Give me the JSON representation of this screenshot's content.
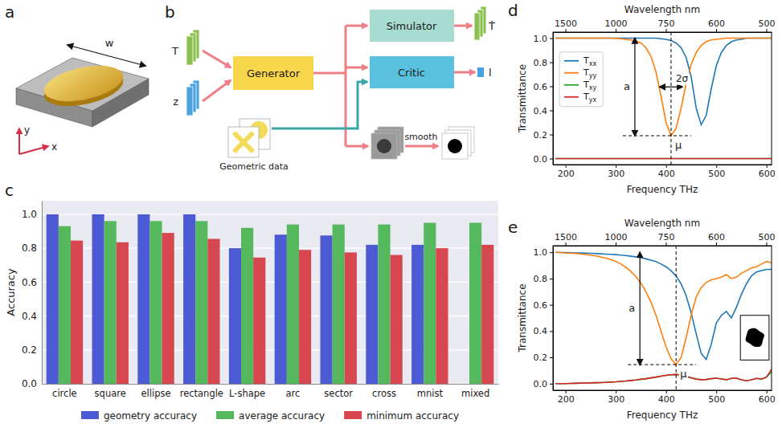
{
  "panel_labels": [
    "a",
    "b",
    "c",
    "d",
    "e"
  ],
  "illustration_a": {
    "axes": [
      "x",
      "y"
    ],
    "width": "w"
  },
  "diagram_b": {
    "inputs": [
      "T",
      "z"
    ],
    "generator": "Generator",
    "simulator": "Simulator",
    "critic": "Critic",
    "outputs": [
      "T̂",
      "l"
    ],
    "geometric_data": "Geometric data",
    "smooth": "smooth"
  },
  "chart_data": [
    {
      "type": "bar",
      "y_label": "Accuracy",
      "categories": [
        "circle",
        "square",
        "ellipse",
        "rectangle",
        "L-shape",
        "arc",
        "sector",
        "cross",
        "mnist",
        "mixed"
      ],
      "ylim": [
        0,
        1.08
      ],
      "yticks": [
        {
          "value": 0,
          "label": "0.0"
        },
        0.2,
        0.4,
        0.6,
        0.8,
        {
          "value": 1,
          "label": "1.0"
        }
      ],
      "grid": true,
      "legend": "bottom",
      "series": [
        {
          "name": "geometry accuracy",
          "color": "#4c5bd4",
          "values": [
            1.0,
            1.0,
            1.0,
            1.0,
            0.8,
            0.88,
            0.875,
            0.82,
            0.82,
            null
          ]
        },
        {
          "name": "average accuracy",
          "color": "#55b85c",
          "values": [
            0.93,
            0.96,
            0.96,
            0.96,
            0.92,
            0.94,
            0.94,
            0.94,
            0.95,
            0.95
          ]
        },
        {
          "name": "minimum accuracy",
          "color": "#d6474f",
          "values": [
            0.845,
            0.835,
            0.89,
            0.855,
            0.745,
            0.79,
            0.775,
            0.76,
            0.8,
            0.82
          ]
        }
      ]
    },
    {
      "type": "line",
      "x_label": "Frequency THz",
      "x2_label": "Wavelength nm",
      "y_label": "Transmittance",
      "x": [
        180,
        190,
        200,
        210,
        220,
        230,
        240,
        250,
        260,
        270,
        280,
        290,
        300,
        310,
        320,
        330,
        340,
        350,
        360,
        370,
        380,
        390,
        400,
        410,
        420,
        430,
        440,
        450,
        460,
        470,
        480,
        490,
        500,
        510,
        520,
        530,
        540,
        550,
        560,
        570,
        580,
        590,
        600,
        610
      ],
      "xlim": [
        175,
        610
      ],
      "xticks": [
        200,
        300,
        400,
        500,
        600
      ],
      "x2ticks": [
        {
          "value": 199.86,
          "label": "1500"
        },
        {
          "value": 299.79,
          "label": "1000"
        },
        {
          "value": 399.72,
          "label": "750"
        },
        {
          "value": 499.65,
          "label": "600"
        },
        {
          "value": 599.58,
          "label": "500"
        }
      ],
      "ylim": [
        -0.05,
        1.05
      ],
      "yticks": [
        {
          "value": 0,
          "label": "0.0"
        },
        0.2,
        0.4,
        0.6,
        0.8,
        {
          "value": 1,
          "label": "1.0"
        }
      ],
      "grid": false,
      "legend": "upper left",
      "annotations": {
        "amplitude": "a",
        "width": "2σ",
        "center": "μ"
      },
      "series": [
        {
          "name": "Txx",
          "color": "#1f77b4",
          "values": [
            1.0,
            1.0,
            1.0,
            1.0,
            1.0,
            1.0,
            1.0,
            1.0,
            1.0,
            1.0,
            1.0,
            1.0,
            1.0,
            1.0,
            1.0,
            1.0,
            1.0,
            1.0,
            1.0,
            1.0,
            1.0,
            0.995,
            0.99,
            0.98,
            0.96,
            0.92,
            0.84,
            0.68,
            0.42,
            0.28,
            0.36,
            0.58,
            0.77,
            0.88,
            0.94,
            0.97,
            0.985,
            0.99,
            1.0,
            1.0,
            1.0,
            1.0,
            1.0,
            1.0
          ]
        },
        {
          "name": "Tyy",
          "color": "#ff7f0e",
          "values": [
            1.0,
            1.0,
            1.0,
            1.0,
            1.0,
            1.0,
            1.0,
            1.0,
            1.0,
            1.0,
            1.0,
            1.0,
            0.998,
            0.995,
            0.99,
            0.985,
            0.975,
            0.96,
            0.92,
            0.85,
            0.72,
            0.52,
            0.3,
            0.19,
            0.25,
            0.42,
            0.62,
            0.78,
            0.88,
            0.94,
            0.97,
            0.985,
            0.99,
            0.995,
            1.0,
            1.0,
            1.0,
            1.0,
            1.0,
            1.0,
            1.0,
            1.0,
            1.0,
            1.0
          ]
        },
        {
          "name": "Txy",
          "color": "#2ca02c",
          "values": [
            0,
            0,
            0,
            0,
            0,
            0,
            0,
            0,
            0,
            0,
            0,
            0,
            0,
            0,
            0,
            0,
            0,
            0,
            0,
            0,
            0,
            0,
            0,
            0,
            0,
            0,
            0,
            0,
            0,
            0,
            0,
            0,
            0,
            0,
            0,
            0,
            0,
            0,
            0,
            0,
            0,
            0,
            0,
            0
          ]
        },
        {
          "name": "Tyx",
          "color": "#d62728",
          "values": [
            0,
            0,
            0,
            0,
            0,
            0,
            0,
            0,
            0,
            0,
            0,
            0,
            0,
            0,
            0,
            0,
            0,
            0,
            0,
            0,
            0,
            0,
            0,
            0,
            0,
            0,
            0,
            0,
            0,
            0,
            0,
            0,
            0,
            0,
            0,
            0,
            0,
            0,
            0,
            0,
            0,
            0,
            0,
            0
          ]
        }
      ]
    },
    {
      "type": "line",
      "x_label": "Frequency THz",
      "x2_label": "Wavelength nm",
      "y_label": "Transmittance",
      "x": [
        180,
        190,
        200,
        210,
        220,
        230,
        240,
        250,
        260,
        270,
        280,
        290,
        300,
        310,
        320,
        330,
        340,
        350,
        360,
        370,
        380,
        390,
        400,
        410,
        420,
        430,
        440,
        450,
        460,
        470,
        480,
        490,
        500,
        510,
        520,
        530,
        540,
        550,
        560,
        570,
        580,
        590,
        600,
        610
      ],
      "xlim": [
        175,
        610
      ],
      "xticks": [
        200,
        300,
        400,
        500,
        600
      ],
      "x2ticks": [
        {
          "value": 199.86,
          "label": "1500"
        },
        {
          "value": 299.79,
          "label": "1000"
        },
        {
          "value": 399.72,
          "label": "750"
        },
        {
          "value": 499.65,
          "label": "600"
        },
        {
          "value": 599.58,
          "label": "500"
        }
      ],
      "ylim": [
        -0.05,
        1.05
      ],
      "yticks": [
        {
          "value": 0,
          "label": "0.0"
        },
        0.2,
        0.4,
        0.6,
        0.8,
        {
          "value": 1,
          "label": "1.0"
        }
      ],
      "grid": false,
      "annotations": {
        "amplitude": "a",
        "center": "μ"
      },
      "series": [
        {
          "color": "#1f77b4",
          "values": [
            1.0,
            0.998,
            0.997,
            0.996,
            0.995,
            0.994,
            0.993,
            0.992,
            0.99,
            0.988,
            0.986,
            0.984,
            0.982,
            0.978,
            0.975,
            0.97,
            0.965,
            0.958,
            0.95,
            0.94,
            0.93,
            0.91,
            0.89,
            0.86,
            0.82,
            0.76,
            0.67,
            0.54,
            0.38,
            0.23,
            0.185,
            0.3,
            0.46,
            0.52,
            0.55,
            0.5,
            0.58,
            0.68,
            0.76,
            0.82,
            0.85,
            0.86,
            0.87,
            0.87
          ]
        },
        {
          "color": "#ff7f0e",
          "values": [
            1.0,
            0.998,
            0.995,
            0.993,
            0.99,
            0.987,
            0.983,
            0.978,
            0.972,
            0.965,
            0.955,
            0.945,
            0.93,
            0.91,
            0.885,
            0.855,
            0.815,
            0.765,
            0.7,
            0.62,
            0.52,
            0.4,
            0.28,
            0.19,
            0.145,
            0.2,
            0.35,
            0.52,
            0.66,
            0.73,
            0.77,
            0.79,
            0.8,
            0.81,
            0.83,
            0.8,
            0.81,
            0.84,
            0.86,
            0.88,
            0.89,
            0.91,
            0.93,
            0.92
          ]
        },
        {
          "color": "#2ca02c",
          "values": [
            0.0,
            0.0,
            0.0,
            0.002,
            0.003,
            0.004,
            0.005,
            0.006,
            0.007,
            0.008,
            0.01,
            0.012,
            0.014,
            0.017,
            0.02,
            0.024,
            0.028,
            0.033,
            0.038,
            0.044,
            0.05,
            0.057,
            0.063,
            0.068,
            0.07,
            0.066,
            0.055,
            0.045,
            0.035,
            0.03,
            0.032,
            0.038,
            0.042,
            0.036,
            0.03,
            0.04,
            0.042,
            0.03,
            0.022,
            0.03,
            0.04,
            0.035,
            0.05,
            0.09
          ]
        },
        {
          "color": "#d62728",
          "values": [
            0.0,
            0.0,
            0.0,
            0.002,
            0.003,
            0.004,
            0.005,
            0.006,
            0.007,
            0.008,
            0.01,
            0.012,
            0.014,
            0.017,
            0.02,
            0.024,
            0.028,
            0.033,
            0.038,
            0.044,
            0.05,
            0.057,
            0.063,
            0.068,
            0.07,
            0.066,
            0.055,
            0.045,
            0.035,
            0.03,
            0.032,
            0.038,
            0.042,
            0.036,
            0.03,
            0.04,
            0.042,
            0.03,
            0.022,
            0.03,
            0.04,
            0.035,
            0.05,
            0.11
          ]
        }
      ]
    }
  ]
}
